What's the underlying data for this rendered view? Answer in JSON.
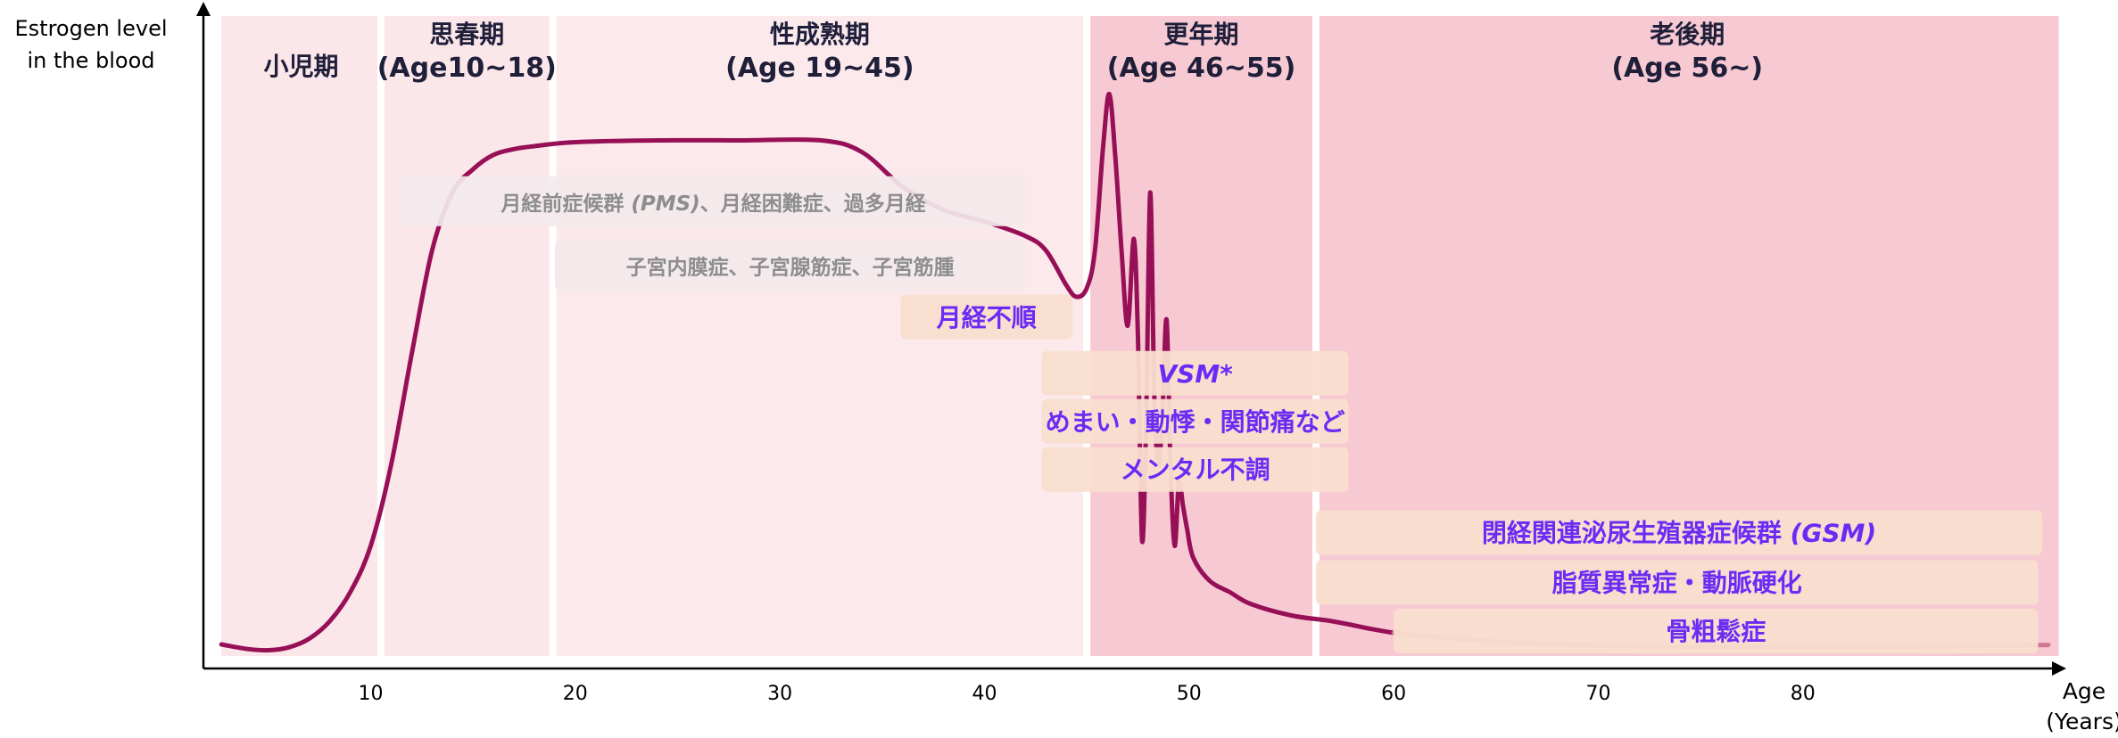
{
  "colors": {
    "child_band": "#fbe6ea",
    "puberty_band": "#fbe6ea",
    "reproductive_band": "#fbe9ec",
    "menopause_band": "#f7cad3",
    "elderly_band": "#f7c9d2",
    "curve": "#970f56",
    "curve_faded": "#cf7891",
    "phase_label": "#1f1f3a",
    "gray_label": "#8d8d8d",
    "gray_box": "#f3e9eb",
    "purple_label": "#6a2cf5",
    "peach_box": "#f9decf",
    "axis": "#000000"
  },
  "chart_data": {
    "type": "line",
    "ylabel": [
      "Estrogen level",
      "in the blood"
    ],
    "xlabel": [
      "Age",
      "(Years)"
    ],
    "xlim": [
      2,
      92
    ],
    "x_ticks": [
      10,
      20,
      30,
      40,
      50,
      60,
      70,
      80
    ],
    "phases": [
      {
        "lines": [
          "小児期"
        ],
        "start": 2.7,
        "end": 10.5,
        "band": "child_band"
      },
      {
        "lines": [
          "思春期",
          "(Age10~18)"
        ],
        "start": 10.5,
        "end": 18.9,
        "band": "puberty_band"
      },
      {
        "lines": [
          "性成熟期",
          "(Age 19~45)"
        ],
        "start": 18.9,
        "end": 45.0,
        "band": "reproductive_band"
      },
      {
        "lines": [
          "更年期",
          "(Age 46~55)"
        ],
        "start": 45.0,
        "end": 56.2,
        "band": "menopause_band"
      },
      {
        "lines": [
          "老後期",
          "(Age 56~)"
        ],
        "start": 56.2,
        "end": 92.5,
        "band": "elderly_band"
      }
    ],
    "estrogen_curve": {
      "x": [
        2.7,
        4,
        5,
        6,
        7,
        8,
        9,
        10,
        11,
        12,
        13,
        14,
        15,
        16,
        17,
        18,
        20,
        24,
        28,
        32,
        34,
        36,
        38,
        40,
        42,
        43,
        44,
        44.5,
        45,
        45.4,
        45.8,
        46.1,
        46.4,
        46.7,
        47.0,
        47.3,
        47.5,
        47.7,
        47.9,
        48.1,
        48.3,
        48.5,
        48.7,
        48.9,
        49.1,
        49.3,
        49.5,
        49.7,
        49.9,
        50.2,
        51,
        52,
        53,
        55,
        57,
        59,
        60,
        63,
        66,
        70,
        75,
        80,
        85,
        90,
        92
      ],
      "y": [
        2,
        1.2,
        1.0,
        1.5,
        3,
        6,
        11,
        19,
        33,
        52,
        70,
        80,
        84,
        86.5,
        87.5,
        88,
        88.7,
        89,
        89,
        89,
        87,
        81,
        77,
        75,
        72.5,
        70,
        64,
        62,
        63.5,
        70,
        88,
        97,
        86,
        70,
        57,
        72,
        55,
        20,
        40,
        80,
        45,
        33,
        42,
        58,
        32,
        19,
        30,
        26,
        22,
        17,
        13,
        11,
        9,
        7,
        6,
        4.6,
        4,
        3,
        2.3,
        1.8,
        1.6,
        1.6,
        1.6,
        1.8,
        1.9
      ],
      "faded_from_x": 60
    },
    "annotations": [
      {
        "text": "月経前症候群 ",
        "text_italic": "(PMS)",
        "text_after": "、月経困難症、過多月経",
        "style": "gray",
        "x0": 11.5,
        "x1": 42.0,
        "y": 78.5
      },
      {
        "text": "子宮内膜症、子宮腺筋症、子宮筋腫",
        "style": "gray",
        "x0": 19.0,
        "x1": 42.0,
        "y": 67.5
      },
      {
        "text": "月経不順",
        "style": "purple",
        "x0": 35.9,
        "x1": 44.3,
        "y": 58.5
      },
      {
        "text": "VSM*",
        "style": "purple_italic",
        "x0": 42.8,
        "x1": 57.8,
        "y": 48.8
      },
      {
        "text": "めまい・動悸・関節痛など",
        "style": "purple",
        "x0": 42.8,
        "x1": 57.8,
        "y": 40.5
      },
      {
        "text": "メンタル不調",
        "style": "purple",
        "x0": 42.8,
        "x1": 57.8,
        "y": 32.2
      },
      {
        "text": "閉経関連泌尿生殖器症候群 ",
        "text_italic": "(GSM)",
        "style": "purple",
        "x0": 56.2,
        "x1": 91.7,
        "y": 21.3
      },
      {
        "text": "脂質異常症・動脈硬化",
        "style": "purple",
        "x0": 56.2,
        "x1": 91.5,
        "y": 12.7
      },
      {
        "text": "骨粗鬆症",
        "style": "purple",
        "x0": 60.0,
        "x1": 91.5,
        "y": 4.3
      }
    ]
  }
}
